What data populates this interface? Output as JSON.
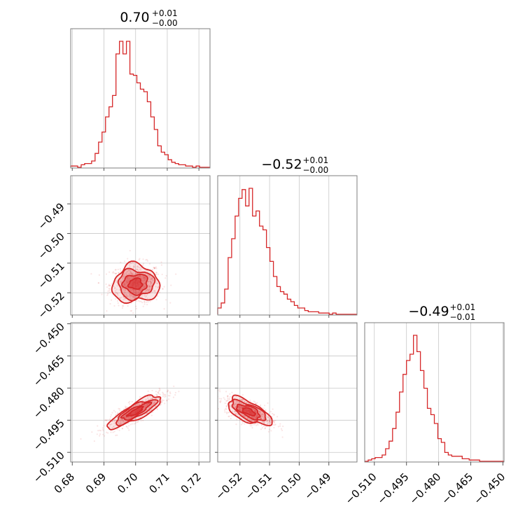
{
  "chart_data": {
    "type": "corner",
    "color": "#d62728",
    "grid": true,
    "panels": [
      {
        "row": 0,
        "col": 0,
        "type": "histogram",
        "param": 0
      },
      {
        "row": 1,
        "col": 0,
        "type": "density",
        "x_param": 0,
        "y_param": 1
      },
      {
        "row": 1,
        "col": 1,
        "type": "histogram",
        "param": 1
      },
      {
        "row": 2,
        "col": 0,
        "type": "density",
        "x_param": 0,
        "y_param": 2
      },
      {
        "row": 2,
        "col": 1,
        "type": "density",
        "x_param": 1,
        "y_param": 2
      },
      {
        "row": 2,
        "col": 2,
        "type": "histogram",
        "param": 2
      }
    ],
    "params": [
      {
        "range": [
          0.6795,
          0.7235
        ],
        "ticks": [
          0.68,
          0.69,
          0.7,
          0.71,
          0.72
        ],
        "tick_labels": [
          "0.68",
          "0.69",
          "0.70",
          "0.71",
          "0.72"
        ],
        "summary": {
          "median": "0.70",
          "plus": "+0.01",
          "minus": "−0.00"
        },
        "hist": [
          0.01,
          0.01,
          0.0,
          0.02,
          0.03,
          0.03,
          0.05,
          0.11,
          0.2,
          0.28,
          0.4,
          0.48,
          0.57,
          0.9,
          1.0,
          0.9,
          1.0,
          0.74,
          0.73,
          0.67,
          0.62,
          0.6,
          0.52,
          0.4,
          0.3,
          0.17,
          0.12,
          0.1,
          0.06,
          0.04,
          0.03,
          0.02,
          0.02,
          0.01,
          0.01,
          0.0,
          0.01,
          0.0,
          0.0,
          0.0
        ]
      },
      {
        "range": [
          -0.5275,
          -0.4805
        ],
        "ticks": [
          -0.52,
          -0.51,
          -0.5,
          -0.49
        ],
        "tick_labels": [
          "−0.52",
          "−0.51",
          "−0.50",
          "−0.49"
        ],
        "summary": {
          "median": "−0.52",
          "plus": "+0.01",
          "minus": "−0.00"
        },
        "hist": [
          0.05,
          0.09,
          0.2,
          0.45,
          0.6,
          0.78,
          0.92,
          0.99,
          0.86,
          1.0,
          0.78,
          0.82,
          0.7,
          0.67,
          0.53,
          0.42,
          0.3,
          0.22,
          0.18,
          0.16,
          0.12,
          0.1,
          0.07,
          0.05,
          0.05,
          0.03,
          0.02,
          0.02,
          0.02,
          0.01,
          0.01,
          0.01,
          0.0,
          0.01,
          0.0,
          0.0,
          0.0,
          0.0,
          0.0,
          0.0
        ]
      },
      {
        "range": [
          -0.5145,
          -0.4495
        ],
        "ticks": [
          -0.51,
          -0.495,
          -0.48,
          -0.465,
          -0.45
        ],
        "tick_labels": [
          "−0.510",
          "−0.495",
          "−0.480",
          "−0.465",
          "−0.450"
        ],
        "summary": {
          "median": "−0.49",
          "plus": "+0.01",
          "minus": "−0.01"
        },
        "hist": [
          0.0,
          0.01,
          0.02,
          0.03,
          0.03,
          0.05,
          0.1,
          0.16,
          0.26,
          0.39,
          0.55,
          0.69,
          0.8,
          0.85,
          1.0,
          0.87,
          0.72,
          0.58,
          0.42,
          0.37,
          0.3,
          0.18,
          0.15,
          0.07,
          0.05,
          0.04,
          0.04,
          0.04,
          0.02,
          0.02,
          0.01,
          0.01,
          0.01,
          0.0,
          0.0,
          0.0,
          0.0,
          0.0,
          0.0,
          0.0
        ]
      }
    ],
    "density": [
      {
        "x_param": 0,
        "y_param": 1,
        "mean": [
          0.7,
          -0.517
        ],
        "sd": [
          0.0035,
          0.003
        ],
        "rho": 0.05,
        "level_multipliers": [
          0.6,
          1.1,
          1.6,
          2.1
        ]
      },
      {
        "x_param": 0,
        "y_param": 2,
        "mean": [
          0.7,
          -0.491
        ],
        "sd": [
          0.004,
          0.0036
        ],
        "rho": 0.84,
        "level_multipliers": [
          0.6,
          1.1,
          1.6,
          2.1
        ]
      },
      {
        "x_param": 1,
        "y_param": 2,
        "mean": [
          -0.517,
          -0.491
        ],
        "sd": [
          0.0035,
          0.003
        ],
        "rho": -0.62,
        "level_multipliers": [
          0.6,
          1.1,
          1.6,
          2.1
        ]
      }
    ]
  }
}
